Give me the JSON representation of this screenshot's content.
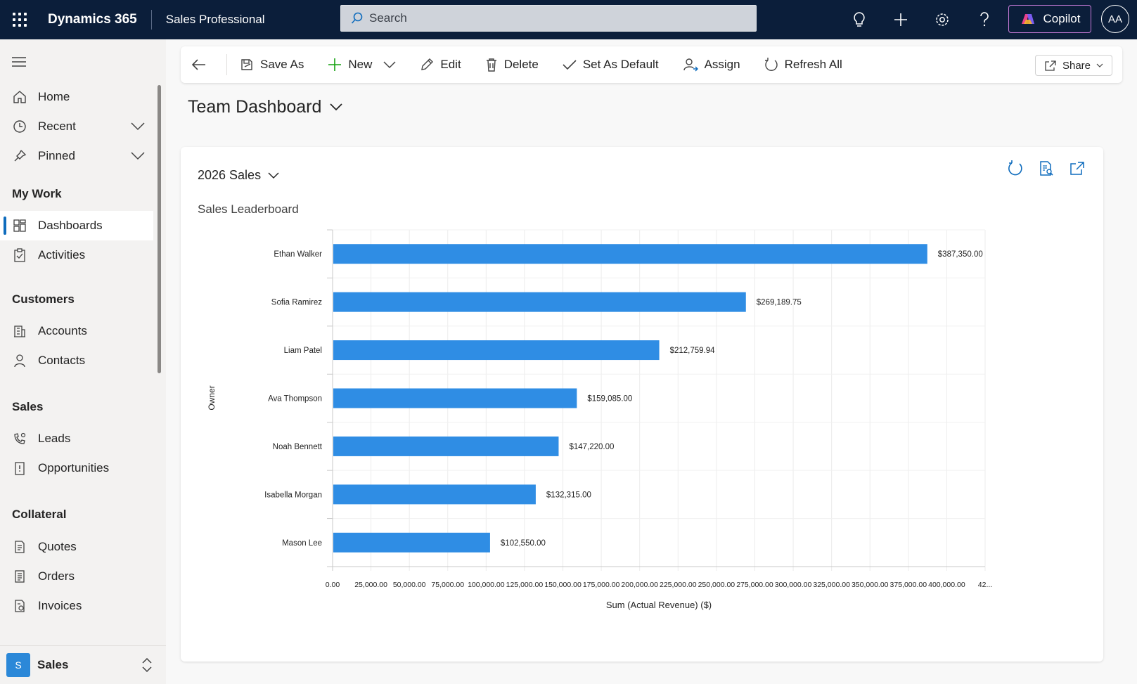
{
  "topbar": {
    "brand": "Dynamics 365",
    "app_name": "Sales Professional",
    "search_placeholder": "Search",
    "copilot_label": "Copilot",
    "avatar_initials": "AA",
    "icons": [
      "waffle-icon",
      "lightbulb-icon",
      "plus-icon",
      "gear-icon",
      "help-icon",
      "copilot-icon"
    ]
  },
  "sidebar": {
    "top_items": [
      {
        "label": "Home",
        "icon": "home-icon"
      },
      {
        "label": "Recent",
        "icon": "clock-icon"
      },
      {
        "label": "Pinned",
        "icon": "pin-icon"
      }
    ],
    "groups": [
      {
        "title": "My Work",
        "items": [
          {
            "label": "Dashboards",
            "icon": "dashboard-icon",
            "active": true
          },
          {
            "label": "Activities",
            "icon": "clipboard-icon"
          }
        ]
      },
      {
        "title": "Customers",
        "items": [
          {
            "label": "Accounts",
            "icon": "building-icon"
          },
          {
            "label": "Contacts",
            "icon": "person-icon"
          }
        ]
      },
      {
        "title": "Sales",
        "items": [
          {
            "label": "Leads",
            "icon": "phone-person-icon"
          },
          {
            "label": "Opportunities",
            "icon": "opportunity-icon"
          }
        ]
      },
      {
        "title": "Collateral",
        "items": [
          {
            "label": "Quotes",
            "icon": "quote-icon"
          },
          {
            "label": "Orders",
            "icon": "order-icon"
          },
          {
            "label": "Invoices",
            "icon": "invoice-icon"
          }
        ]
      }
    ],
    "area": {
      "badge": "S",
      "label": "Sales"
    }
  },
  "commandbar": {
    "save_as": "Save As",
    "new": "New",
    "edit": "Edit",
    "delete": "Delete",
    "set_default": "Set As Default",
    "assign": "Assign",
    "refresh_all": "Refresh All",
    "share": "Share"
  },
  "page": {
    "title": "Team Dashboard"
  },
  "card": {
    "view_name": "2026 Sales",
    "chart_title": "Sales Leaderboard"
  },
  "colors": {
    "topbar": "#0b1e3a",
    "bar": "#2f8de4",
    "accent": "#0f6cbd"
  },
  "chart_data": {
    "type": "bar",
    "orientation": "horizontal",
    "title": "Sales Leaderboard",
    "xlabel": "Sum (Actual Revenue) ($)",
    "ylabel": "Owner",
    "categories": [
      "Ethan Walker",
      "Sofia Ramirez",
      "Liam Patel",
      "Ava Thompson",
      "Noah Bennett",
      "Isabella Morgan",
      "Mason Lee"
    ],
    "values": [
      387350.0,
      269189.75,
      212759.94,
      159085.0,
      147220.0,
      132315.0,
      102550.0
    ],
    "value_labels": [
      "$387,350.00",
      "$269,189.75",
      "$212,759.94",
      "$159,085.00",
      "$147,220.00",
      "$132,315.00",
      "$102,550.00"
    ],
    "x_ticks": [
      "0.00",
      "25,000.00",
      "50,000.00",
      "75,000.00",
      "100,000.00",
      "125,000.00",
      "150,000.00",
      "175,000.00",
      "200,000.00",
      "225,000.00",
      "250,000.00",
      "275,000.00",
      "300,000.00",
      "325,000.00",
      "350,000.00",
      "375,000.00",
      "400,000.00",
      "42..."
    ],
    "xlim": [
      0,
      425000
    ],
    "grid": true
  }
}
